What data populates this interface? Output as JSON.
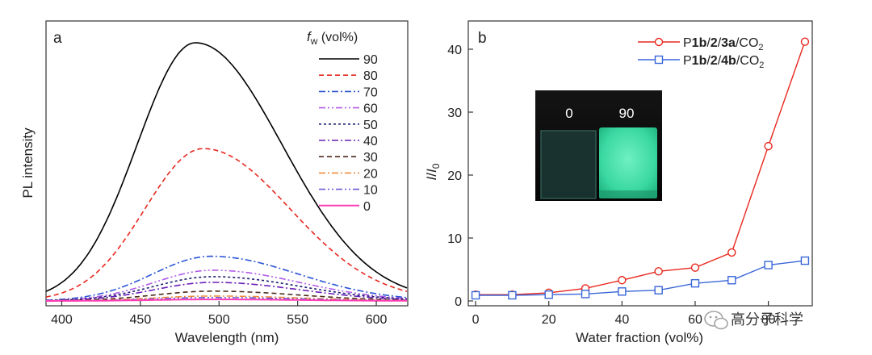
{
  "chart_data": [
    {
      "type": "line",
      "panel_label": "a",
      "xlabel": "Wavelength (nm)",
      "ylabel": "PL intensity",
      "xlim": [
        390,
        620
      ],
      "ylim": [
        0,
        100
      ],
      "x_ticks": [
        400,
        450,
        500,
        550,
        600
      ],
      "legend_title_main": "f",
      "legend_title_sub": "w",
      "legend_title_unit": " (vol%)",
      "legend_position": "top-right",
      "grid": false,
      "series": [
        {
          "name": "90",
          "peak_x": 485,
          "peak_y": 100,
          "color": "#000000",
          "dash": ""
        },
        {
          "name": "80",
          "peak_x": 490,
          "peak_y": 59,
          "color": "#e8281e",
          "dash": "6,4"
        },
        {
          "name": "70",
          "peak_x": 495,
          "peak_y": 17.3,
          "color": "#2b55d6",
          "dash": "8,3,2,3"
        },
        {
          "name": "60",
          "peak_x": 496,
          "peak_y": 11.9,
          "color": "#b15ce8",
          "dash": "8,3,2,3,2,3"
        },
        {
          "name": "50",
          "peak_x": 496,
          "peak_y": 9.4,
          "color": "#1c1c6e",
          "dash": "3,3"
        },
        {
          "name": "40",
          "peak_x": 496,
          "peak_y": 7.2,
          "color": "#6a1fb8",
          "dash": "8,3,2,3"
        },
        {
          "name": "30",
          "peak_x": 496,
          "peak_y": 3.8,
          "color": "#4a2a1a",
          "dash": "6,4"
        },
        {
          "name": "20",
          "peak_x": 496,
          "peak_y": 1.9,
          "color": "#f08a3c",
          "dash": "8,3,2,3"
        },
        {
          "name": "10",
          "peak_x": 496,
          "peak_y": 1.3,
          "color": "#6a5ad6",
          "dash": "8,3,2,3,2,3"
        },
        {
          "name": "0",
          "peak_x": 496,
          "peak_y": 0.6,
          "color": "#ff3cb4",
          "dash": ""
        }
      ]
    },
    {
      "type": "line",
      "panel_label": "b",
      "xlabel": "Water fraction (vol%)",
      "ylabel_main": "I",
      "ylabel_sep": "/",
      "ylabel_base": "I",
      "ylabel_sub": "0",
      "xlim": [
        -2,
        92
      ],
      "ylim": [
        0,
        45
      ],
      "x_ticks": [
        0,
        20,
        40,
        60,
        80
      ],
      "y_ticks": [
        0,
        10,
        20,
        30,
        40
      ],
      "legend_position": "top-right",
      "grid": false,
      "series": [
        {
          "name": "P1b/2/3a/CO2",
          "label_parts": [
            "P",
            "1b",
            "/",
            "2",
            "/",
            "3a",
            "/CO",
            "2"
          ],
          "marker": "circle",
          "color": "#e8281e",
          "x": [
            0,
            10,
            20,
            30,
            40,
            50,
            60,
            70,
            80,
            90
          ],
          "y": [
            1.0,
            1.0,
            1.3,
            2.0,
            3.3,
            4.7,
            5.3,
            7.7,
            24.6,
            41.2
          ]
        },
        {
          "name": "P1b/2/4b/CO2",
          "label_parts": [
            "P",
            "1b",
            "/",
            "2",
            "/",
            "4b",
            "/CO",
            "2"
          ],
          "marker": "square",
          "color": "#3a66d8",
          "x": [
            0,
            10,
            20,
            30,
            40,
            50,
            60,
            70,
            80,
            90
          ],
          "y": [
            0.9,
            0.9,
            1.0,
            1.1,
            1.5,
            1.7,
            2.8,
            3.3,
            5.7,
            6.4
          ]
        }
      ],
      "inset": {
        "left_label": "0",
        "right_label": "90",
        "glow_color": "#35e0a0"
      }
    }
  ],
  "watermark": {
    "text": "高分子科学"
  }
}
